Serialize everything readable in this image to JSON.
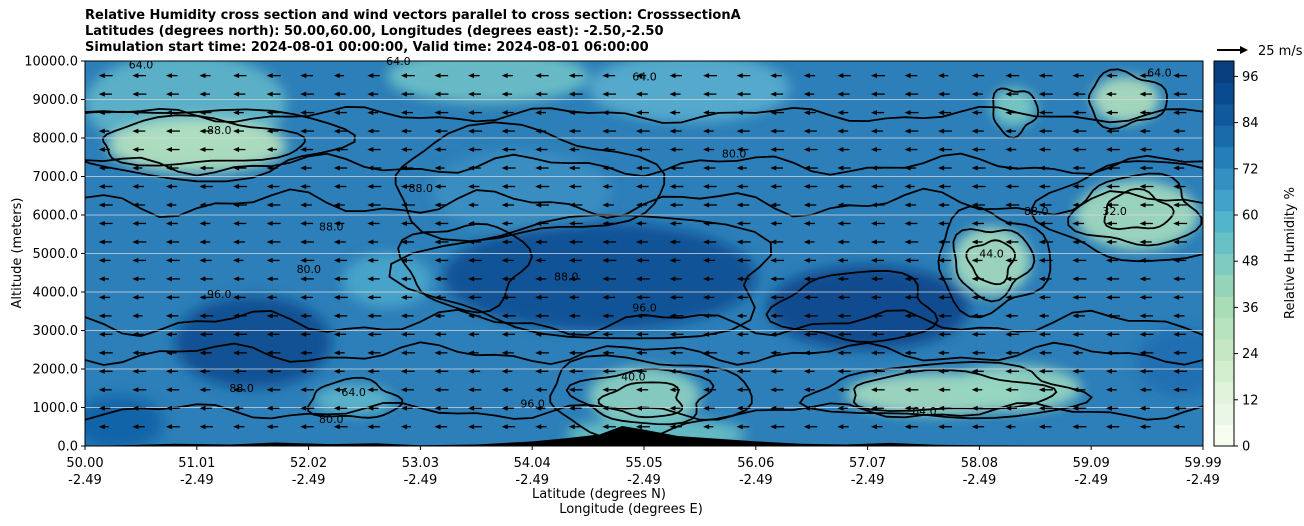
{
  "chart_data": {
    "type": "heatmap",
    "title_lines": [
      "Relative Humidity cross section and wind vectors parallel to cross section: CrosssectionA",
      "Latitudes (degrees north): 50.00,60.00, Longitudes (degrees east): -2.50,-2.50",
      "Simulation start time: 2024-08-01 00:00:00, Valid time: 2024-08-01 06:00:00"
    ],
    "ylabel": "Altitude (meters)",
    "xlabel_lines": [
      "Latitude (degrees N)",
      "Longitude (degrees E)"
    ],
    "y_ticks": [
      "0.0",
      "1000.0",
      "2000.0",
      "3000.0",
      "4000.0",
      "5000.0",
      "6000.0",
      "7000.0",
      "8000.0",
      "9000.0",
      "10000.0"
    ],
    "ylim": [
      0,
      10000
    ],
    "x_ticks_lat": [
      "50.00",
      "51.01",
      "52.02",
      "53.03",
      "54.04",
      "55.05",
      "56.06",
      "57.07",
      "58.08",
      "59.09",
      "59.99"
    ],
    "x_ticks_lon": [
      "-2.49",
      "-2.49",
      "-2.49",
      "-2.49",
      "-2.49",
      "-2.49",
      "-2.49",
      "-2.49",
      "-2.49",
      "-2.49",
      "-2.49"
    ],
    "colorbar_label": "Relative Humidity %",
    "colorbar_ticks": [
      "0",
      "12",
      "24",
      "36",
      "48",
      "60",
      "72",
      "84",
      "96"
    ],
    "colorbar_range": [
      0,
      100
    ],
    "quiver_key_label": "25 m/s",
    "grid": "horizontal",
    "contour_labels": [
      {
        "lat": 51.2,
        "alt": 8100,
        "text": "88.0"
      },
      {
        "lat": 52.2,
        "alt": 5600,
        "text": "88.0"
      },
      {
        "lat": 53.0,
        "alt": 6600,
        "text": "88.0"
      },
      {
        "lat": 51.2,
        "alt": 3850,
        "text": "96.0"
      },
      {
        "lat": 52.0,
        "alt": 4500,
        "text": "80.0"
      },
      {
        "lat": 51.4,
        "alt": 1400,
        "text": "88.0"
      },
      {
        "lat": 52.4,
        "alt": 1300,
        "text": "64.0"
      },
      {
        "lat": 52.2,
        "alt": 600,
        "text": "80.0"
      },
      {
        "lat": 54.3,
        "alt": 4300,
        "text": "88.0"
      },
      {
        "lat": 55.0,
        "alt": 3500,
        "text": "96.0"
      },
      {
        "lat": 54.9,
        "alt": 1700,
        "text": "40.0"
      },
      {
        "lat": 54.0,
        "alt": 1000,
        "text": "96.0"
      },
      {
        "lat": 55.8,
        "alt": 7500,
        "text": "80.0"
      },
      {
        "lat": 55.0,
        "alt": 9500,
        "text": "64.0"
      },
      {
        "lat": 52.8,
        "alt": 9900,
        "text": "64.0"
      },
      {
        "lat": 50.5,
        "alt": 9800,
        "text": "64.0"
      },
      {
        "lat": 58.5,
        "alt": 6000,
        "text": "88.0"
      },
      {
        "lat": 59.2,
        "alt": 6000,
        "text": "32.0"
      },
      {
        "lat": 58.1,
        "alt": 4900,
        "text": "44.0"
      },
      {
        "lat": 57.5,
        "alt": 800,
        "text": "64.0"
      },
      {
        "lat": 59.6,
        "alt": 9600,
        "text": "64.0"
      }
    ]
  }
}
